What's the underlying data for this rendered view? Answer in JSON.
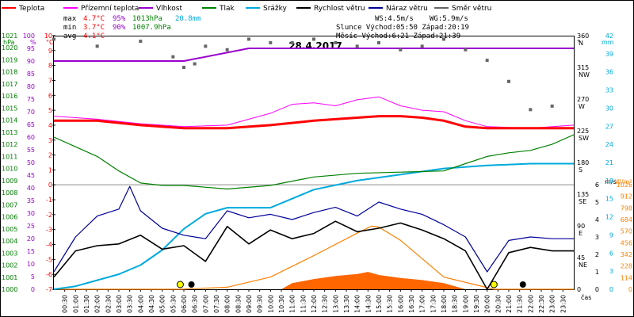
{
  "legend": [
    {
      "label": "Teplota",
      "color": "#ff0000"
    },
    {
      "label": "Přízemní teplota",
      "color": "#ff00ff"
    },
    {
      "label": "Vlhkost",
      "color": "#9900cc"
    },
    {
      "label": "Tlak",
      "color": "#008000"
    },
    {
      "label": "Srážky",
      "color": "#00aadd"
    },
    {
      "label": "Rychlost větru",
      "color": "#000000"
    },
    {
      "label": "Náraz větru",
      "color": "#000099"
    },
    {
      "label": "Směr větru",
      "color": "#666666"
    }
  ],
  "stats": {
    "max_label": "max",
    "max_temp": "4.7°C",
    "max_hum": "95%",
    "max_press": "1013hPa",
    "rain_total": "20.8mm",
    "min_label": "min",
    "min_temp": "3.7°C",
    "min_hum": "90%",
    "min_press": "1007.9hPa",
    "avg_label": "avg",
    "avg_temp": "4.1°C",
    "ws": "WS:4.5m/s",
    "wg": "WG:5.9m/s",
    "sun": "Slunce Východ:05:50  Západ:20:19",
    "moon": "Měsíc  Východ:6:21   Západ:21:39"
  },
  "title": "28.4.2017",
  "axes": {
    "hpa_label": "hPa",
    "pct_label": "%",
    "c_label": "°C",
    "deg_label": "°",
    "mm_label": "mm",
    "ms_label": "m/s",
    "wm2_label": "W/m²",
    "time_label": "čas",
    "hpa_ticks": [
      "1021",
      "1020",
      "1019",
      "1018",
      "1017",
      "1016",
      "1015",
      "1014",
      "1013",
      "1012",
      "1011",
      "1010",
      "1009",
      "1008",
      "1007",
      "1006",
      "1005",
      "1004",
      "1003",
      "1002",
      "1001",
      "1000"
    ],
    "pct_ticks": [
      "100",
      "95",
      "90",
      "85",
      "80",
      "75",
      "70",
      "65",
      "60",
      "55",
      "50",
      "45",
      "40",
      "35",
      "30",
      "25",
      "20",
      "15",
      "10",
      "5",
      "0"
    ],
    "c_ticks": [
      "10",
      "9",
      "8",
      "7",
      "6",
      "5",
      "4",
      "3",
      "2",
      "1",
      "0",
      "-1",
      "-2",
      "-3",
      "-4",
      "-5",
      "-6",
      "-7"
    ],
    "deg_ticks": [
      "360",
      "315",
      "270",
      "225",
      "180",
      "135",
      "90",
      "45",
      "0"
    ],
    "dir_ticks": [
      "N",
      "NW",
      "W",
      "SW",
      "S",
      "SE",
      "E",
      "NE",
      ""
    ],
    "mm_ticks": [
      "42",
      "39",
      "36",
      "33",
      "30",
      "27",
      "24",
      "21",
      "18",
      "15",
      "12",
      "9",
      "6",
      "3",
      "0"
    ],
    "ms_ticks": [
      "6",
      "5",
      "4",
      "3",
      "2",
      "1",
      "0"
    ],
    "wm2_ticks": [
      "1026",
      "912",
      "798",
      "684",
      "570",
      "456",
      "342",
      "228",
      "114",
      "0"
    ],
    "time_ticks": [
      "00:30",
      "01:00",
      "01:30",
      "02:00",
      "02:30",
      "03:00",
      "03:30",
      "04:00",
      "04:30",
      "05:00",
      "05:30",
      "06:00",
      "06:30",
      "07:00",
      "07:30",
      "08:00",
      "08:30",
      "09:00",
      "09:30",
      "10:00",
      "10:30",
      "11:00",
      "11:30",
      "12:00",
      "12:30",
      "13:00",
      "13:30",
      "14:00",
      "14:30",
      "15:00",
      "15:30",
      "16:00",
      "16:30",
      "17:00",
      "17:30",
      "18:00",
      "18:30",
      "19:00",
      "19:30",
      "20:00",
      "20:30",
      "21:00",
      "21:30",
      "22:00",
      "22:30",
      "23:00",
      "23:30"
    ]
  },
  "chart_data": {
    "type": "line",
    "title": "28.4.2017",
    "x_range": [
      "00:00",
      "24:00"
    ],
    "series": [
      {
        "name": "Teplota",
        "unit": "°C",
        "color": "#ff0000",
        "x": [
          "00:00",
          "02:00",
          "04:00",
          "06:00",
          "08:00",
          "10:00",
          "12:00",
          "14:00",
          "15:00",
          "16:00",
          "17:00",
          "18:00",
          "19:00",
          "20:00",
          "22:00",
          "24:00"
        ],
        "values": [
          4.3,
          4.3,
          4.0,
          3.8,
          3.8,
          4.0,
          4.3,
          4.5,
          4.6,
          4.6,
          4.5,
          4.3,
          3.9,
          3.8,
          3.8,
          3.8
        ]
      },
      {
        "name": "Přízemní teplota",
        "unit": "°C",
        "color": "#ff00ff",
        "x": [
          "00:00",
          "02:00",
          "04:00",
          "06:00",
          "08:00",
          "10:00",
          "11:00",
          "12:00",
          "13:00",
          "14:00",
          "15:00",
          "16:00",
          "17:00",
          "18:00",
          "19:00",
          "20:00",
          "22:00",
          "24:00"
        ],
        "values": [
          4.6,
          4.4,
          4.1,
          3.9,
          4.0,
          4.8,
          5.4,
          5.5,
          5.3,
          5.7,
          5.9,
          5.3,
          5.0,
          4.9,
          4.3,
          3.9,
          3.8,
          4.0
        ]
      },
      {
        "name": "Vlhkost",
        "unit": "%",
        "color": "#9900cc",
        "x": [
          "00:00",
          "03:00",
          "06:00",
          "09:00",
          "12:00",
          "15:00",
          "18:00",
          "21:00",
          "24:00"
        ],
        "values": [
          90,
          90,
          90,
          95,
          95,
          95,
          95,
          95,
          95
        ]
      },
      {
        "name": "Tlak",
        "unit": "hPa",
        "color": "#008000",
        "x": [
          "00:00",
          "01:00",
          "02:00",
          "03:00",
          "04:00",
          "05:00",
          "06:00",
          "08:00",
          "10:00",
          "12:00",
          "14:00",
          "16:00",
          "18:00",
          "19:00",
          "20:00",
          "21:00",
          "22:00",
          "23:00",
          "24:00"
        ],
        "values": [
          1012.6,
          1011.8,
          1011.0,
          1009.8,
          1008.8,
          1008.6,
          1008.6,
          1008.3,
          1008.6,
          1009.3,
          1009.6,
          1009.7,
          1009.8,
          1010.4,
          1011.0,
          1011.3,
          1011.5,
          1012.0,
          1012.8
        ]
      },
      {
        "name": "Srážky",
        "unit": "mm",
        "color": "#00aadd",
        "x": [
          "00:00",
          "01:00",
          "02:00",
          "03:00",
          "04:00",
          "05:00",
          "06:00",
          "07:00",
          "08:00",
          "09:00",
          "10:00",
          "12:00",
          "14:00",
          "16:00",
          "18:00",
          "20:00",
          "22:00",
          "24:00"
        ],
        "values": [
          0,
          0.5,
          1.5,
          2.5,
          4,
          6.5,
          10,
          12.5,
          13.5,
          13.5,
          13.5,
          16.5,
          18,
          19,
          20,
          20.5,
          20.8,
          20.8
        ]
      },
      {
        "name": "Rychlost větru",
        "unit": "m/s",
        "color": "#000000",
        "x": [
          "00:00",
          "01:00",
          "02:00",
          "03:00",
          "04:00",
          "05:00",
          "06:00",
          "07:00",
          "08:00",
          "09:00",
          "10:00",
          "11:00",
          "12:00",
          "13:00",
          "14:00",
          "15:00",
          "16:00",
          "17:00",
          "18:00",
          "19:00",
          "20:00",
          "21:00",
          "22:00",
          "23:00",
          "24:00"
        ],
        "values": [
          0.7,
          2.2,
          2.5,
          2.6,
          3.1,
          2.3,
          2.5,
          1.6,
          3.6,
          2.6,
          3.4,
          2.9,
          3.2,
          3.9,
          3.3,
          3.5,
          3.8,
          3.4,
          2.9,
          2.2,
          0,
          2.1,
          2.4,
          2.2,
          2.2
        ]
      },
      {
        "name": "Náraz větru",
        "unit": "m/s",
        "color": "#000099",
        "x": [
          "00:00",
          "01:00",
          "02:00",
          "03:00",
          "03:30",
          "04:00",
          "05:00",
          "06:00",
          "07:00",
          "08:00",
          "09:00",
          "10:00",
          "11:00",
          "12:00",
          "13:00",
          "14:00",
          "15:00",
          "16:00",
          "17:00",
          "18:00",
          "19:00",
          "20:00",
          "21:00",
          "22:00",
          "23:00",
          "24:00"
        ],
        "values": [
          1.0,
          3.0,
          4.2,
          4.6,
          5.9,
          4.5,
          3.5,
          3.1,
          2.9,
          4.5,
          4.1,
          4.3,
          4.0,
          4.4,
          4.7,
          4.2,
          5.0,
          4.6,
          4.3,
          3.7,
          3.0,
          1.0,
          2.8,
          3.0,
          2.9,
          2.9
        ]
      },
      {
        "name": "Směr větru",
        "unit": "°",
        "color": "#666666",
        "x": [
          "00:00",
          "02:00",
          "04:00",
          "05:30",
          "06:00",
          "06:30",
          "07:00",
          "08:00",
          "09:00",
          "10:00",
          "11:00",
          "12:00",
          "13:00",
          "14:00",
          "15:00",
          "16:00",
          "17:00",
          "18:00",
          "19:00",
          "20:00",
          "21:00",
          "22:00",
          "23:00"
        ],
        "values": [
          355,
          345,
          352,
          330,
          315,
          320,
          345,
          340,
          355,
          350,
          350,
          355,
          350,
          345,
          350,
          340,
          345,
          355,
          340,
          325,
          295,
          255,
          260
        ]
      }
    ],
    "solar_radiation": {
      "unit": "W/m²",
      "color": "#ff8000",
      "x": [
        "00:00",
        "05:50",
        "08:00",
        "10:00",
        "12:00",
        "14:00",
        "14:40",
        "15:00",
        "16:00",
        "17:00",
        "18:00",
        "20:19",
        "24:00"
      ],
      "values": [
        0,
        0,
        20,
        120,
        330,
        550,
        620,
        610,
        480,
        300,
        120,
        0,
        0
      ]
    },
    "solar_measured": {
      "unit": "W/m²",
      "color": "#ff6600",
      "x": [
        "00:00",
        "10:30",
        "11:00",
        "12:00",
        "13:00",
        "14:00",
        "14:30",
        "15:00",
        "16:00",
        "17:00",
        "18:00",
        "19:00",
        "24:00"
      ],
      "values": [
        0,
        0,
        60,
        100,
        130,
        150,
        170,
        140,
        110,
        90,
        60,
        0,
        0
      ]
    }
  }
}
